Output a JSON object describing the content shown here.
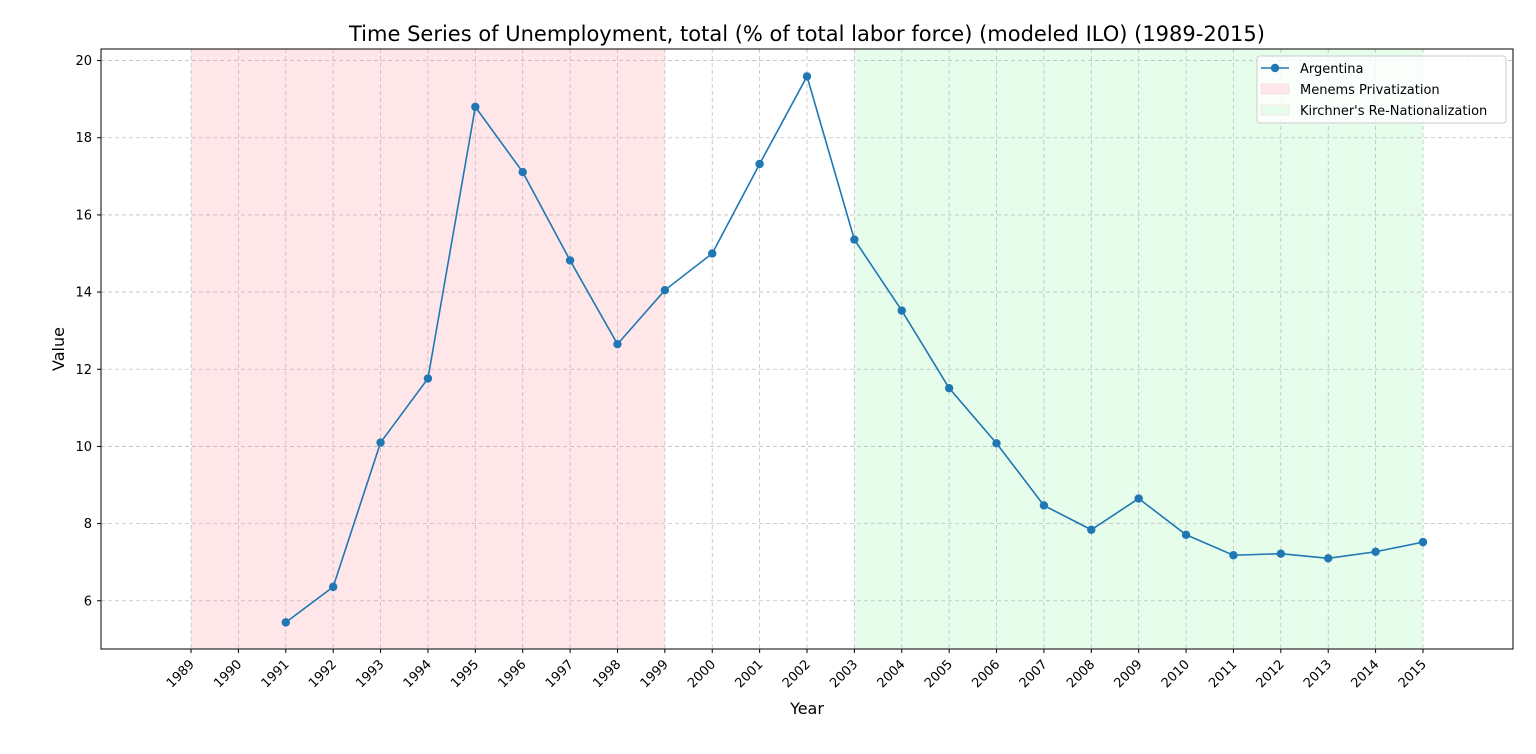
{
  "chart_data": {
    "type": "line",
    "title": "Time Series of Unemployment, total (% of total labor force) (modeled ILO) (1989-2015)",
    "xlabel": "Year",
    "ylabel": "Value",
    "xlim": [
      1987.1,
      2016.9
    ],
    "ylim": [
      4.75,
      20.3
    ],
    "x_ticks": [
      1989,
      1990,
      1991,
      1992,
      1993,
      1994,
      1995,
      1996,
      1997,
      1998,
      1999,
      2000,
      2001,
      2002,
      2003,
      2004,
      2005,
      2006,
      2007,
      2008,
      2009,
      2010,
      2011,
      2012,
      2013,
      2014,
      2015
    ],
    "y_ticks": [
      6,
      8,
      10,
      12,
      14,
      16,
      18,
      20
    ],
    "grid": true,
    "legend_position": "top-right",
    "series": [
      {
        "name": "Argentina",
        "color": "#1f77b4",
        "x": [
          1991,
          1992,
          1993,
          1994,
          1995,
          1996,
          1997,
          1998,
          1999,
          2000,
          2001,
          2002,
          2003,
          2004,
          2005,
          2006,
          2007,
          2008,
          2009,
          2010,
          2011,
          2012,
          2013,
          2014,
          2015
        ],
        "values": [
          5.44,
          6.36,
          10.1,
          11.76,
          18.8,
          17.11,
          14.82,
          12.65,
          14.05,
          15.0,
          17.32,
          19.59,
          15.36,
          13.52,
          11.51,
          10.08,
          8.47,
          7.84,
          8.65,
          7.71,
          7.18,
          7.22,
          7.1,
          7.27,
          7.52
        ]
      }
    ],
    "shaded_regions": [
      {
        "name": "Menems Privatization",
        "start": 1989,
        "end": 1999,
        "color": "#ffe6e9"
      },
      {
        "name": "Kirchner's Re-Nationalization",
        "start": 2003,
        "end": 2015,
        "color": "#e6fdec"
      }
    ]
  }
}
